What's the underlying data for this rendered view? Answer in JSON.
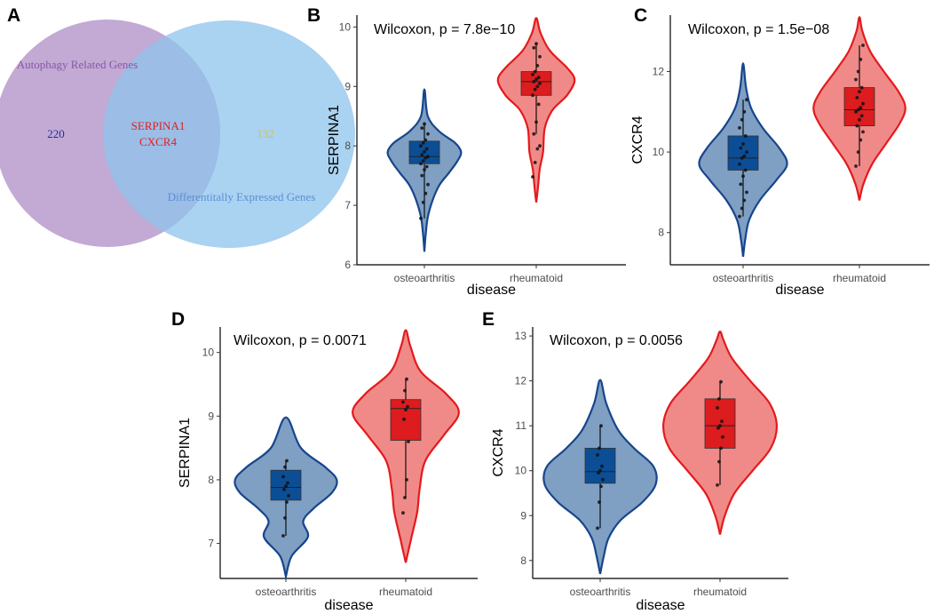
{
  "colors": {
    "oa_line": "#17458C",
    "oa_fill": "#7F9FC3",
    "oa_box": "#0B4E96",
    "ra_line": "#E41A1C",
    "ra_fill": "#F08A88",
    "ra_box": "#DC1C1E",
    "venn_left": "#B79BCC",
    "venn_right": "#8EC3EC",
    "venn_left_text": "#8A55A8",
    "venn_right_text": "#5B8FD4",
    "venn_left_count": "#1E2E9A",
    "venn_right_count": "#D8C43A",
    "venn_overlap_text": "#E02020"
  },
  "panel_A": {
    "letter": "A",
    "left_set_label": "Autophagy Related Genes",
    "left_count": "220",
    "right_set_label": "Differentitally Expressed Genes",
    "right_count": "132",
    "overlap_genes": [
      "SERPINA1",
      "CXCR4"
    ]
  },
  "chart_data": [
    {
      "panel": "B",
      "type": "violin",
      "title": "",
      "annotation": "Wilcoxon, p = 7.8e−10",
      "xlabel": "disease",
      "ylabel": "SERPINA1",
      "categories": [
        "osteoarthritis",
        "rheumatoid"
      ],
      "yticks": [
        6,
        7,
        8,
        9,
        10
      ],
      "ylim": [
        6,
        10.2
      ],
      "groups": [
        {
          "name": "osteoarthritis",
          "q1": 7.7,
          "median": 7.82,
          "q3": 8.08,
          "whisker_low": 6.78,
          "whisker_high": 8.37,
          "violin_min": 6.22,
          "violin_max": 8.95,
          "width_profile": [
            [
              6.22,
              0.0
            ],
            [
              6.5,
              0.03
            ],
            [
              6.8,
              0.08
            ],
            [
              7.1,
              0.2
            ],
            [
              7.35,
              0.36
            ],
            [
              7.55,
              0.58
            ],
            [
              7.75,
              0.78
            ],
            [
              7.9,
              0.86
            ],
            [
              8.05,
              0.72
            ],
            [
              8.25,
              0.34
            ],
            [
              8.5,
              0.08
            ],
            [
              8.95,
              0.0
            ]
          ],
          "points": [
            6.78,
            7.05,
            7.2,
            7.35,
            7.5,
            7.6,
            7.65,
            7.7,
            7.75,
            7.8,
            7.82,
            7.85,
            7.9,
            7.95,
            8.0,
            8.05,
            8.1,
            8.2,
            8.3,
            8.37
          ]
        },
        {
          "name": "rheumatoid",
          "q1": 8.85,
          "median": 9.08,
          "q3": 9.25,
          "whisker_low": 8.2,
          "whisker_high": 9.72,
          "violin_min": 7.05,
          "violin_max": 10.15,
          "width_profile": [
            [
              7.05,
              0.0
            ],
            [
              7.3,
              0.04
            ],
            [
              7.6,
              0.08
            ],
            [
              7.9,
              0.16
            ],
            [
              8.3,
              0.2
            ],
            [
              8.6,
              0.38
            ],
            [
              8.85,
              0.72
            ],
            [
              9.1,
              0.9
            ],
            [
              9.3,
              0.74
            ],
            [
              9.6,
              0.32
            ],
            [
              9.9,
              0.1
            ],
            [
              10.15,
              0.0
            ]
          ],
          "points": [
            7.48,
            7.72,
            7.95,
            8.0,
            8.2,
            8.4,
            8.7,
            8.85,
            8.95,
            9.0,
            9.05,
            9.08,
            9.12,
            9.15,
            9.2,
            9.25,
            9.35,
            9.5,
            9.65,
            9.72
          ]
        }
      ]
    },
    {
      "panel": "C",
      "type": "violin",
      "title": "",
      "annotation": "Wilcoxon, p = 1.5e−08",
      "xlabel": "disease",
      "ylabel": "CXCR4",
      "categories": [
        "osteoarthritis",
        "rheumatoid"
      ],
      "yticks": [
        8,
        10,
        12
      ],
      "ylim": [
        7.2,
        13.4
      ],
      "groups": [
        {
          "name": "osteoarthritis",
          "q1": 9.55,
          "median": 9.85,
          "q3": 10.4,
          "whisker_low": 8.4,
          "whisker_high": 11.3,
          "violin_min": 7.4,
          "violin_max": 12.2,
          "width_profile": [
            [
              7.4,
              0.0
            ],
            [
              7.8,
              0.04
            ],
            [
              8.3,
              0.12
            ],
            [
              8.8,
              0.34
            ],
            [
              9.3,
              0.68
            ],
            [
              9.7,
              0.9
            ],
            [
              10.1,
              0.74
            ],
            [
              10.6,
              0.4
            ],
            [
              11.1,
              0.16
            ],
            [
              11.6,
              0.06
            ],
            [
              12.2,
              0.0
            ]
          ],
          "points": [
            8.4,
            8.6,
            8.8,
            9.0,
            9.2,
            9.4,
            9.55,
            9.7,
            9.85,
            9.9,
            10.0,
            10.1,
            10.2,
            10.4,
            10.6,
            10.8,
            11.0,
            11.3
          ]
        },
        {
          "name": "rheumatoid",
          "q1": 10.65,
          "median": 11.05,
          "q3": 11.6,
          "whisker_low": 9.65,
          "whisker_high": 12.65,
          "violin_min": 8.8,
          "violin_max": 13.35,
          "width_profile": [
            [
              8.8,
              0.0
            ],
            [
              9.2,
              0.08
            ],
            [
              9.7,
              0.26
            ],
            [
              10.2,
              0.54
            ],
            [
              10.7,
              0.82
            ],
            [
              11.1,
              0.94
            ],
            [
              11.5,
              0.8
            ],
            [
              12.0,
              0.5
            ],
            [
              12.5,
              0.22
            ],
            [
              13.0,
              0.06
            ],
            [
              13.35,
              0.0
            ]
          ],
          "points": [
            9.65,
            10.0,
            10.3,
            10.5,
            10.65,
            10.8,
            10.9,
            11.0,
            11.05,
            11.1,
            11.2,
            11.35,
            11.5,
            11.6,
            11.8,
            12.0,
            12.3,
            12.65
          ]
        }
      ]
    },
    {
      "panel": "D",
      "type": "violin",
      "title": "",
      "annotation": "Wilcoxon, p = 0.0071",
      "xlabel": "disease",
      "ylabel": "SERPINA1",
      "categories": [
        "osteoarthritis",
        "rheumatoid"
      ],
      "yticks": [
        7,
        8,
        9,
        10
      ],
      "ylim": [
        6.45,
        10.4
      ],
      "groups": [
        {
          "name": "osteoarthritis",
          "q1": 7.68,
          "median": 7.88,
          "q3": 8.15,
          "whisker_low": 7.12,
          "whisker_high": 8.3,
          "violin_min": 6.48,
          "violin_max": 8.98,
          "width_profile": [
            [
              6.48,
              0.0
            ],
            [
              6.8,
              0.1
            ],
            [
              7.1,
              0.38
            ],
            [
              7.35,
              0.3
            ],
            [
              7.55,
              0.48
            ],
            [
              7.8,
              0.8
            ],
            [
              8.0,
              0.88
            ],
            [
              8.2,
              0.68
            ],
            [
              8.5,
              0.26
            ],
            [
              8.98,
              0.0
            ]
          ],
          "points": [
            7.12,
            7.4,
            7.65,
            7.75,
            7.85,
            7.9,
            7.95,
            8.05,
            8.2,
            8.3
          ]
        },
        {
          "name": "rheumatoid",
          "q1": 8.62,
          "median": 9.12,
          "q3": 9.26,
          "whisker_low": 7.72,
          "whisker_high": 9.58,
          "violin_min": 6.7,
          "violin_max": 10.35,
          "width_profile": [
            [
              6.7,
              0.0
            ],
            [
              7.1,
              0.1
            ],
            [
              7.5,
              0.2
            ],
            [
              7.85,
              0.24
            ],
            [
              8.3,
              0.34
            ],
            [
              8.7,
              0.66
            ],
            [
              9.05,
              0.92
            ],
            [
              9.35,
              0.7
            ],
            [
              9.7,
              0.26
            ],
            [
              10.1,
              0.08
            ],
            [
              10.35,
              0.0
            ]
          ],
          "points": [
            7.48,
            7.72,
            8.0,
            8.6,
            8.95,
            9.1,
            9.15,
            9.22,
            9.4,
            9.58
          ]
        }
      ]
    },
    {
      "panel": "E",
      "type": "violin",
      "title": "",
      "annotation": "Wilcoxon, p = 0.0056",
      "xlabel": "disease",
      "ylabel": "CXCR4",
      "categories": [
        "osteoarthritis",
        "rheumatoid"
      ],
      "yticks": [
        8,
        9,
        10,
        11,
        12,
        13
      ],
      "ylim": [
        7.6,
        13.2
      ],
      "groups": [
        {
          "name": "osteoarthritis",
          "q1": 9.72,
          "median": 9.98,
          "q3": 10.5,
          "whisker_low": 8.72,
          "whisker_high": 11.0,
          "violin_min": 7.7,
          "violin_max": 12.02,
          "width_profile": [
            [
              7.7,
              0.0
            ],
            [
              8.1,
              0.06
            ],
            [
              8.5,
              0.14
            ],
            [
              8.9,
              0.34
            ],
            [
              9.3,
              0.7
            ],
            [
              9.7,
              0.92
            ],
            [
              10.1,
              0.88
            ],
            [
              10.5,
              0.56
            ],
            [
              10.9,
              0.3
            ],
            [
              11.5,
              0.1
            ],
            [
              12.02,
              0.0
            ]
          ],
          "points": [
            8.72,
            9.3,
            9.65,
            9.8,
            9.95,
            10.0,
            10.1,
            10.35,
            10.5,
            11.0
          ]
        },
        {
          "name": "rheumatoid",
          "q1": 10.5,
          "median": 11.0,
          "q3": 11.6,
          "whisker_low": 9.68,
          "whisker_high": 11.98,
          "violin_min": 8.58,
          "violin_max": 13.1,
          "width_profile": [
            [
              8.58,
              0.0
            ],
            [
              9.0,
              0.08
            ],
            [
              9.5,
              0.24
            ],
            [
              10.0,
              0.54
            ],
            [
              10.5,
              0.84
            ],
            [
              11.0,
              0.94
            ],
            [
              11.5,
              0.82
            ],
            [
              12.0,
              0.5
            ],
            [
              12.5,
              0.2
            ],
            [
              12.9,
              0.06
            ],
            [
              13.1,
              0.0
            ]
          ],
          "points": [
            9.68,
            10.2,
            10.5,
            10.75,
            10.95,
            11.0,
            11.1,
            11.4,
            11.6,
            11.98
          ]
        }
      ]
    }
  ]
}
